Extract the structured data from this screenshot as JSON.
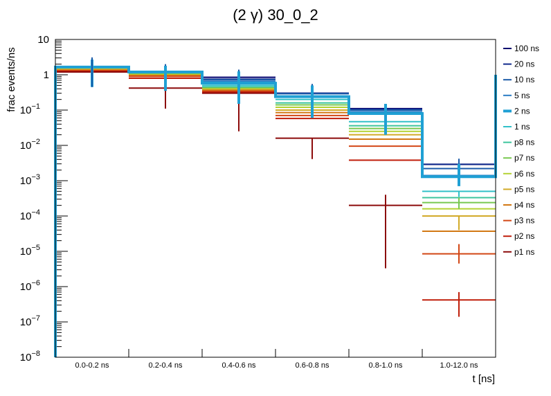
{
  "chart_data": {
    "type": "step-histogram",
    "title_prefix": "(2 ",
    "title_gamma": "γ",
    "title_suffix": ") 30_0_2",
    "xlabel": "t [ns]",
    "ylabel": "frac events/ns",
    "yscale": "log",
    "ylim": [
      1e-08,
      10
    ],
    "categories": [
      "0.0-0.2 ns",
      "0.2-0.4 ns",
      "0.4-0.6 ns",
      "0.6-0.8 ns",
      "0.8-1.0 ns",
      "1.0-12.0 ns"
    ],
    "y_ticks": [
      {
        "value": 10,
        "mantissa": "10",
        "sup": ""
      },
      {
        "value": 1,
        "mantissa": "1",
        "sup": ""
      },
      {
        "value": 0.1,
        "mantissa": "10",
        "sup": "−1"
      },
      {
        "value": 0.01,
        "mantissa": "10",
        "sup": "−2"
      },
      {
        "value": 0.001,
        "mantissa": "10",
        "sup": "−3"
      },
      {
        "value": 0.0001,
        "mantissa": "10",
        "sup": "−4"
      },
      {
        "value": 1e-05,
        "mantissa": "10",
        "sup": "−5"
      },
      {
        "value": 1e-06,
        "mantissa": "10",
        "sup": "−6"
      },
      {
        "value": 1e-07,
        "mantissa": "10",
        "sup": "−7"
      },
      {
        "value": 1e-08,
        "mantissa": "10",
        "sup": "−8"
      }
    ],
    "series": [
      {
        "name": "100 ns",
        "color": "#00006e",
        "values": [
          1.65,
          1.2,
          0.85,
          0.3,
          0.11,
          0.0029
        ],
        "errors": [
          null,
          null,
          null,
          null,
          null,
          null
        ]
      },
      {
        "name": "20 ns",
        "color": "#102a8c",
        "values": [
          1.65,
          1.2,
          0.75,
          0.3,
          0.105,
          0.0029
        ],
        "errors": [
          null,
          null,
          null,
          null,
          null,
          null
        ]
      },
      {
        "name": "10 ns",
        "color": "#1a5aa8",
        "values": [
          1.65,
          1.2,
          0.72,
          0.29,
          0.1,
          0.0022
        ],
        "errors": [
          [
            0.7,
            3.1
          ],
          [
            0.5,
            2.0
          ],
          [
            0.2,
            1.4
          ],
          [
            0.07,
            0.55
          ],
          [
            0.03,
            0.12
          ],
          [
            0.0012,
            0.0042
          ]
        ]
      },
      {
        "name": "5 ns",
        "color": "#2a7cc4",
        "values": [
          1.65,
          1.2,
          0.65,
          0.25,
          0.09,
          0.0014
        ],
        "errors": [
          null,
          null,
          null,
          null,
          null,
          null
        ]
      },
      {
        "name": "2 ns",
        "color": "#1fa0d4",
        "thick": true,
        "values": [
          1.65,
          1.2,
          0.58,
          0.24,
          0.08,
          0.0013
        ],
        "errors": [
          [
            0.45,
            2.7
          ],
          [
            0.35,
            1.8
          ],
          [
            0.15,
            1.25
          ],
          [
            0.06,
            0.5
          ],
          [
            0.02,
            0.15
          ],
          [
            0.0007,
            0.003
          ]
        ]
      },
      {
        "name": "1 ns",
        "color": "#30c0c8",
        "values": [
          1.6,
          1.15,
          0.5,
          0.2,
          0.047,
          0.0005
        ],
        "errors": [
          null,
          null,
          null,
          null,
          null,
          null
        ]
      },
      {
        "name": "p8 ns",
        "color": "#3cc49c",
        "values": [
          1.55,
          1.1,
          0.45,
          0.16,
          0.036,
          0.00033
        ],
        "errors": [
          null,
          null,
          null,
          null,
          null,
          null
        ]
      },
      {
        "name": "p7 ns",
        "color": "#78c850",
        "values": [
          1.5,
          1.05,
          0.42,
          0.14,
          0.03,
          0.00024
        ],
        "errors": [
          null,
          null,
          null,
          null,
          null,
          null
        ]
      },
      {
        "name": "p6 ns",
        "color": "#b4d232",
        "values": [
          1.45,
          1.0,
          0.4,
          0.12,
          0.025,
          0.00016
        ],
        "errors": [
          null,
          null,
          null,
          null,
          null,
          null
        ]
      },
      {
        "name": "p5 ns",
        "color": "#d2aa28",
        "values": [
          1.4,
          0.98,
          0.38,
          0.1,
          0.02,
          0.0001
        ],
        "errors": [
          null,
          null,
          null,
          null,
          null,
          null
        ]
      },
      {
        "name": "p4 ns",
        "color": "#d27814",
        "values": [
          1.35,
          0.95,
          0.36,
          0.085,
          0.015,
          3.7e-05
        ],
        "errors": [
          null,
          null,
          null,
          null,
          null,
          null
        ]
      },
      {
        "name": "p3 ns",
        "color": "#d24614",
        "values": [
          1.3,
          0.9,
          0.34,
          0.07,
          0.0095,
          8.5e-06
        ],
        "errors": [
          null,
          null,
          null,
          null,
          null,
          null
        ]
      },
      {
        "name": "p2 ns",
        "color": "#c01e0a",
        "values": [
          1.25,
          0.8,
          0.32,
          0.058,
          0.0038,
          4.2e-07
        ],
        "errors": [
          null,
          null,
          null,
          null,
          null,
          null
        ]
      },
      {
        "name": "p1 ns",
        "color": "#8c0a0a",
        "values": [
          1.2,
          0.42,
          0.3,
          0.016,
          0.0002,
          null
        ],
        "errors": [
          null,
          [
            0.11,
            0.42
          ],
          [
            0.025,
            0.3
          ],
          [
            0.0041,
            0.016
          ],
          [
            3.3e-06,
            0.0004
          ],
          null
        ]
      }
    ],
    "extra_error_bars": [
      {
        "category": "0.0-0.2 ns",
        "color": "#1a5aa8",
        "low": 0.45,
        "high": 3.1
      },
      {
        "category": "1.0-12.0 ns",
        "color": "#30c0c8",
        "low": 0.00035,
        "high": 0.0005
      },
      {
        "category": "1.0-12.0 ns",
        "color": "#78c850",
        "low": 0.00016,
        "high": 0.00033
      },
      {
        "category": "1.0-12.0 ns",
        "color": "#d2aa28",
        "low": 4e-05,
        "high": 0.0001
      },
      {
        "category": "1.0-12.0 ns",
        "color": "#d24614",
        "low": 4.5e-06,
        "high": 1.6e-05
      },
      {
        "category": "1.0-12.0 ns",
        "color": "#c01e0a",
        "low": 1.4e-07,
        "high": 7e-07
      }
    ]
  }
}
